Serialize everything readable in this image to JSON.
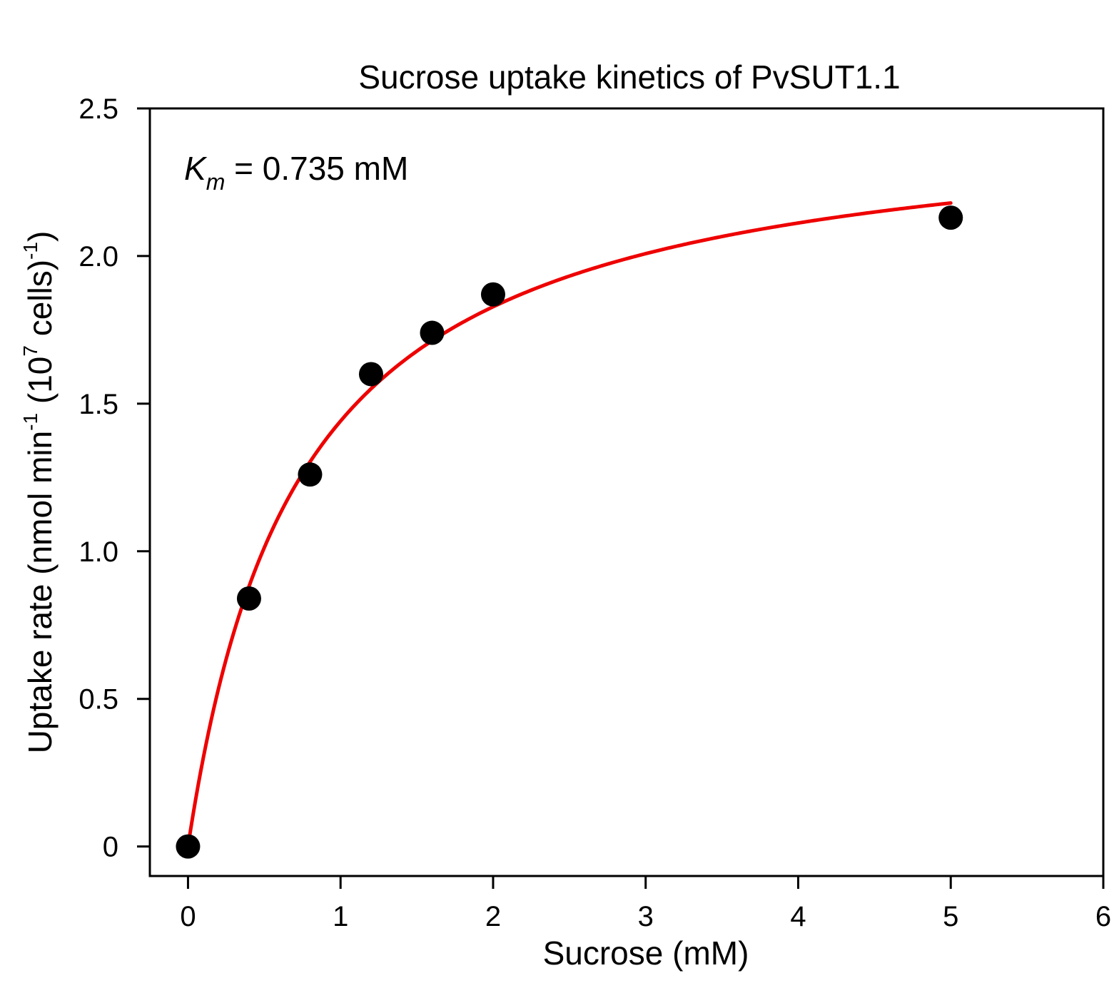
{
  "chart_data": {
    "type": "scatter",
    "title": "Sucrose uptake kinetics of PvSUT1.1",
    "xlabel": "Sucrose (mM)",
    "ylabel": {
      "part1": "Uptake rate (nmol min",
      "sup1": "-1",
      "part2": " (10",
      "sup2": "7",
      "part3": " cells)",
      "sup3": "-1",
      "part4": ")"
    },
    "xlim": [
      -0.25,
      6
    ],
    "ylim": [
      -0.1,
      2.5
    ],
    "xticks": [
      0,
      1,
      2,
      3,
      4,
      5,
      6
    ],
    "xtick_labels": [
      "0",
      "1",
      "2",
      "3",
      "4",
      "5",
      "6"
    ],
    "yticks": [
      0,
      0.5,
      1.0,
      1.5,
      2.0,
      2.5
    ],
    "ytick_labels": [
      "0",
      "0.5",
      "1.0",
      "1.5",
      "2.0",
      "2.5"
    ],
    "grid": false,
    "series": [
      {
        "kind": "points",
        "color": "#000000",
        "x": [
          0,
          0.4,
          0.8,
          1.2,
          1.6,
          2.0,
          5.0
        ],
        "y": [
          0.0,
          0.84,
          1.26,
          1.6,
          1.74,
          1.87,
          2.13
        ]
      },
      {
        "kind": "fit-curve",
        "model": "michaelis-menten",
        "color": "#ee0000",
        "vmax": 2.5,
        "km": 0.735,
        "x_range": [
          0,
          5
        ]
      }
    ],
    "annotation": {
      "symbol": "K",
      "subscript": "m",
      "text": " = 0.735 mM"
    }
  }
}
